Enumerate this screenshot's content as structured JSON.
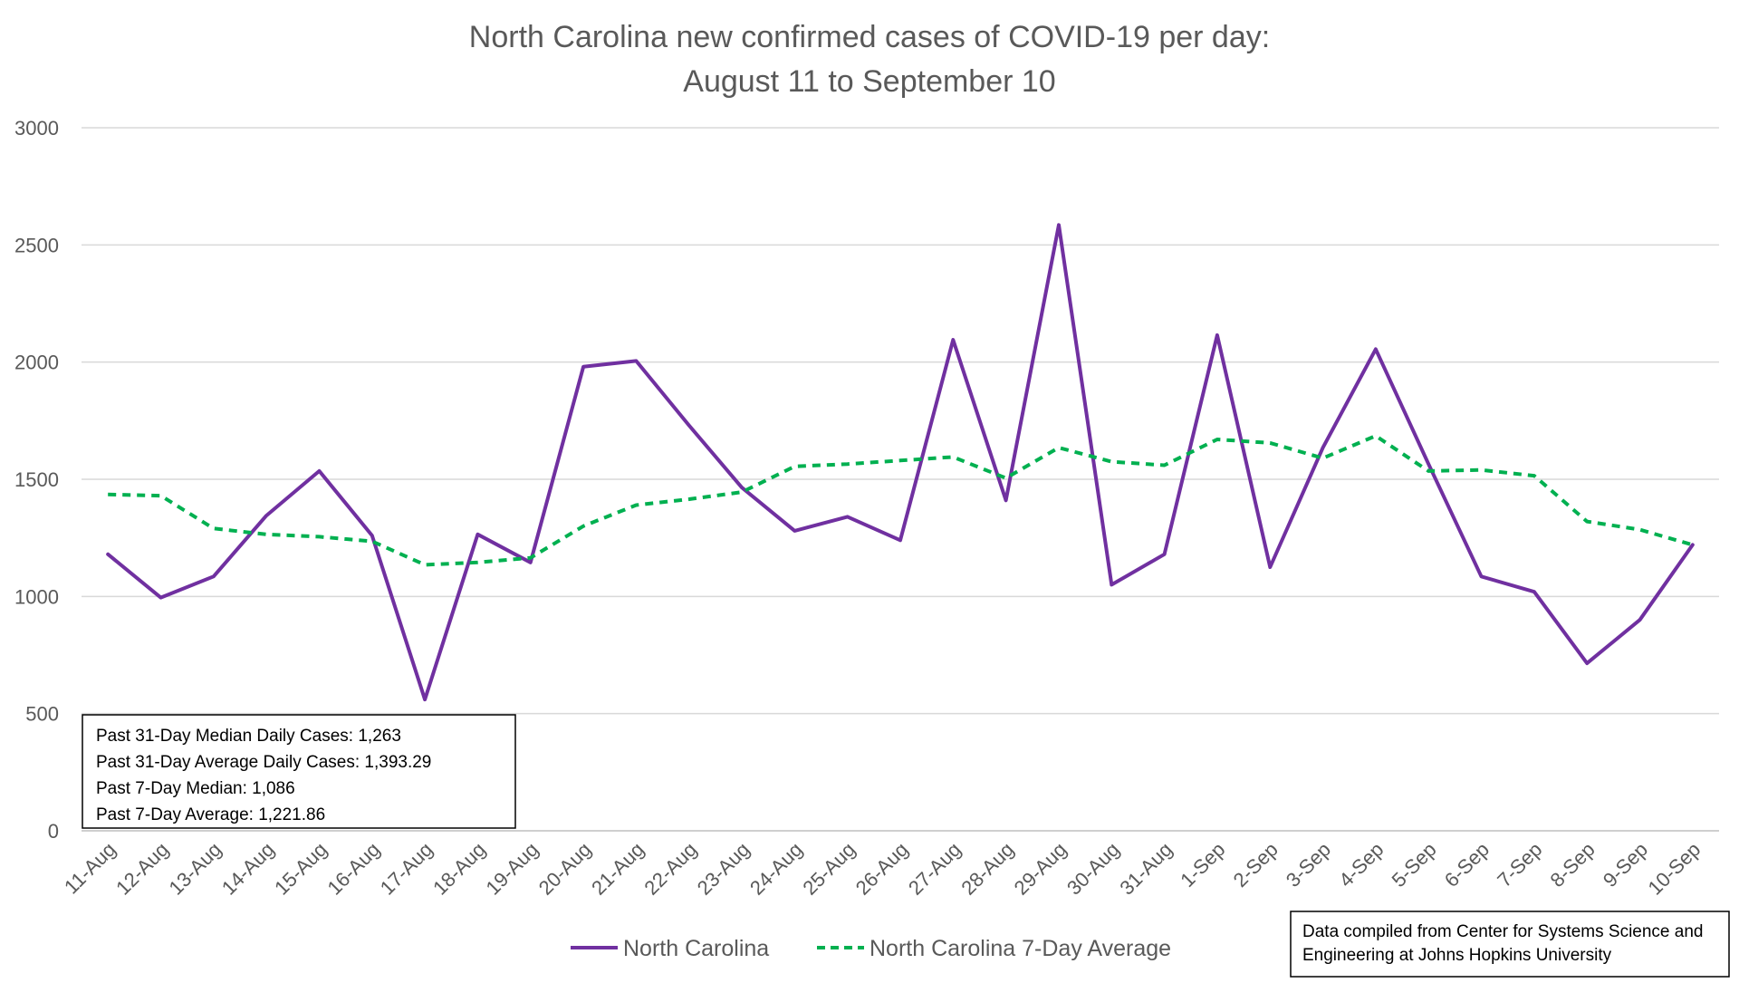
{
  "chart_data": {
    "type": "line",
    "title": "North Carolina new confirmed cases of COVID-19 per day:",
    "subtitle": "August 11 to September 10",
    "xlabel": "",
    "ylabel": "",
    "ylim": [
      0,
      3000
    ],
    "yticks": [
      0,
      500,
      1000,
      1500,
      2000,
      2500,
      3000
    ],
    "grid": true,
    "legend_position": "bottom",
    "categories": [
      "11-Aug",
      "12-Aug",
      "13-Aug",
      "14-Aug",
      "15-Aug",
      "16-Aug",
      "17-Aug",
      "18-Aug",
      "19-Aug",
      "20-Aug",
      "21-Aug",
      "22-Aug",
      "23-Aug",
      "24-Aug",
      "25-Aug",
      "26-Aug",
      "27-Aug",
      "28-Aug",
      "29-Aug",
      "30-Aug",
      "31-Aug",
      "1-Sep",
      "2-Sep",
      "3-Sep",
      "4-Sep",
      "5-Sep",
      "6-Sep",
      "7-Sep",
      "8-Sep",
      "9-Sep",
      "10-Sep"
    ],
    "series": [
      {
        "name": "North Carolina",
        "color": "#7030a0",
        "style": "solid",
        "values": [
          1180,
          995,
          1085,
          1345,
          1535,
          1260,
          560,
          1265,
          1145,
          1980,
          2005,
          1730,
          1465,
          1280,
          1340,
          1240,
          2095,
          1410,
          2585,
          1050,
          1180,
          2115,
          1125,
          1635,
          2055,
          1565,
          1085,
          1020,
          715,
          900,
          1220
        ]
      },
      {
        "name": "North Carolina 7-Day Average",
        "color": "#00b050",
        "style": "dashed",
        "values": [
          1435,
          1430,
          1290,
          1265,
          1255,
          1235,
          1135,
          1145,
          1165,
          1300,
          1390,
          1415,
          1445,
          1555,
          1565,
          1580,
          1595,
          1505,
          1635,
          1575,
          1560,
          1670,
          1655,
          1590,
          1685,
          1535,
          1540,
          1515,
          1320,
          1285,
          1220
        ]
      }
    ],
    "stats_box": [
      "Past 31-Day Median Daily Cases: 1,263",
      "Past 31-Day Average Daily Cases: 1,393.29",
      "Past 7-Day Median: 1,086",
      "Past 7-Day Average: 1,221.86"
    ],
    "source_note": [
      "Data compiled from Center for Systems Science and",
      "Engineering at Johns Hopkins University"
    ],
    "colors": {
      "grid": "#d9d9d9",
      "text": "#595959"
    }
  }
}
